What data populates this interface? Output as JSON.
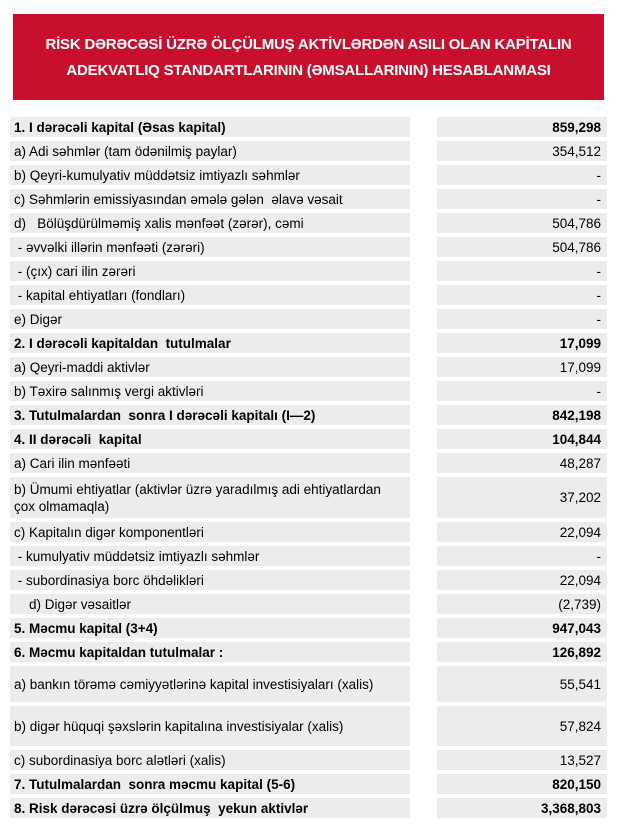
{
  "header": {
    "title_line1": "RİSK DƏRƏCƏSİ ÜZRƏ ÖLÇÜLMUŞ AKTİVLƏRDƏN ASILI OLAN KAPİTALIN",
    "title_line2": "ADEKVATLIQ STANDARTLARININ (ƏMSALLARININ) HESABLANMASI",
    "banner_color": "#C8102E",
    "banner_text_color": "#FFFFFF"
  },
  "table": {
    "cell_bg": "#ECECEC",
    "rows": [
      {
        "label": "1. I dərəcəli kapital (Əsas kapital)",
        "value": "859,298",
        "bold": true,
        "size": "s"
      },
      {
        "label": "a) Adi səhmlər (tam ödənilmiş paylar)",
        "value": "354,512",
        "bold": false,
        "size": "s"
      },
      {
        "label": "b) Qeyri-kumulyativ müddətsiz imtiyazlı səhmlər",
        "value": "-",
        "bold": false,
        "size": "s"
      },
      {
        "label": "c) Səhmlərin emissiyasından əmələ gələn  əlavə vəsait",
        "value": "-",
        "bold": false,
        "size": "s"
      },
      {
        "label": "d)   Bölüşdürülməmiş xalis mənfəət (zərər), cəmi",
        "value": "504,786",
        "bold": false,
        "size": "s"
      },
      {
        "label": " - əvvəlki illərin mənfəəti (zərəri)",
        "value": "504,786",
        "bold": false,
        "size": "s"
      },
      {
        "label": " - (çıx) cari ilin zərəri",
        "value": "-",
        "bold": false,
        "size": "s"
      },
      {
        "label": " - kapital ehtiyatları (fondları)",
        "value": "-",
        "bold": false,
        "size": "s"
      },
      {
        "label": "e) Digər",
        "value": "-",
        "bold": false,
        "size": "s"
      },
      {
        "label": "2. I dərəcəli kapitaldan  tutulmalar",
        "value": "17,099",
        "bold": true,
        "size": "s"
      },
      {
        "label": "a) Qeyri-maddi aktivlər",
        "value": "17,099",
        "bold": false,
        "size": "s"
      },
      {
        "label": "b) Təxirə salınmış vergi aktivləri",
        "value": "-",
        "bold": false,
        "size": "s"
      },
      {
        "label": "3. Tutulmalardan  sonra I dərəcəli kapitalı (I—2)",
        "value": "842,198",
        "bold": true,
        "size": "s"
      },
      {
        "label": "4. II dərəcəli  kapital",
        "value": "104,844",
        "bold": true,
        "size": "s"
      },
      {
        "label": "a) Cari ilin mənfəəti",
        "value": "48,287",
        "bold": false,
        "size": "s"
      },
      {
        "label": "b) Ümumi ehtiyatlar (aktivlər üzrə yaradılmış adi ehtiyatlardan çox olmamaqla)",
        "value": "37,202",
        "bold": false,
        "size": "d"
      },
      {
        "label": "c) Kapitalın digər komponentləri",
        "value": "22,094",
        "bold": false,
        "size": "s"
      },
      {
        "label": " - kumulyativ müddətsiz imtiyazlı səhmlər",
        "value": "-",
        "bold": false,
        "size": "s"
      },
      {
        "label": " - subordinasiya borc öhdəlikləri",
        "value": "22,094",
        "bold": false,
        "size": "s"
      },
      {
        "label": "    d) Digər vəsaitlər",
        "value": "(2,739)",
        "bold": false,
        "size": "s"
      },
      {
        "label": "5. Məcmu kapital (3+4)",
        "value": "947,043",
        "bold": true,
        "size": "s"
      },
      {
        "label": "6. Məcmu kapitaldan tutulmalar :",
        "value": "126,892",
        "bold": true,
        "size": "s"
      },
      {
        "label": "a) bankın törəmə cəmiyyətlərinə kapital investisiyaları (xalis)",
        "value": "55,541",
        "bold": false,
        "size": "t36"
      },
      {
        "label": "b) digər hüquqi şəxslərin kapitalına investisiyalar (xalis)",
        "value": "57,824",
        "bold": false,
        "size": "t40"
      },
      {
        "label": "c) subordinasiya borc alətləri (xalis)",
        "value": "13,527",
        "bold": false,
        "size": "s"
      },
      {
        "label": "7. Tutulmalardan  sonra məcmu kapital (5-6)",
        "value": "820,150",
        "bold": true,
        "size": "s"
      },
      {
        "label": "8. Risk dərəcəsi üzrə ölçülmuş  yekun aktivlər",
        "value": "3,368,803",
        "bold": true,
        "size": "s"
      }
    ]
  }
}
